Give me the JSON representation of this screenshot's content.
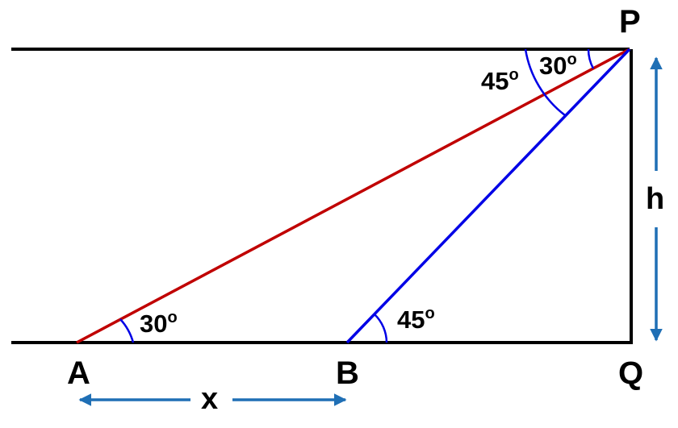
{
  "points": {
    "A": "A",
    "B": "B",
    "P": "P",
    "Q": "Q"
  },
  "angles": {
    "at_A": "30",
    "at_B": "45",
    "at_P_depression_A": "30",
    "at_P_depression_B": "45",
    "degree_mark": "o"
  },
  "variables": {
    "height": "h",
    "distance_AB": "x"
  },
  "colors": {
    "sight_line_A": "#c00000",
    "sight_line_B": "#0000e6",
    "arc": "#0000e6",
    "dimension_arrow": "#1f6fb5",
    "frame": "#000000"
  }
}
